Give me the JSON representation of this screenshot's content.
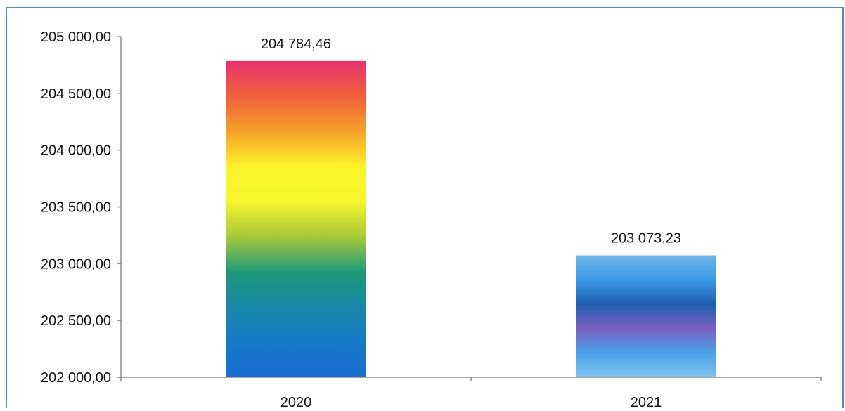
{
  "chart_data": {
    "type": "bar",
    "title": "",
    "xlabel": "",
    "ylabel": "",
    "categories": [
      "2020",
      "2021"
    ],
    "values": [
      204784.46,
      203073.23
    ],
    "value_labels": [
      "204 784,46",
      "203 073,23"
    ],
    "ylim": [
      202000,
      205000
    ],
    "yticks": [
      202000,
      202500,
      203000,
      203500,
      204000,
      204500,
      205000
    ],
    "ytick_labels": [
      "202 000,00",
      "202 500,00",
      "203 000,00",
      "203 500,00",
      "204 000,00",
      "204 500,00",
      "205 000,00"
    ],
    "grid": false,
    "legend": "none",
    "bar_gradients": [
      [
        "#e8336d",
        "#f0603c",
        "#f7a12a",
        "#fdf22a",
        "#f6f52c",
        "#a9c93a",
        "#1e9a78",
        "#1788a8",
        "#157ac7",
        "#1a6ed0"
      ],
      [
        "#6fb6ea",
        "#3a9ae8",
        "#1e5fb0",
        "#7a5fc0",
        "#4aa2e8",
        "#7ec0f0"
      ]
    ]
  }
}
